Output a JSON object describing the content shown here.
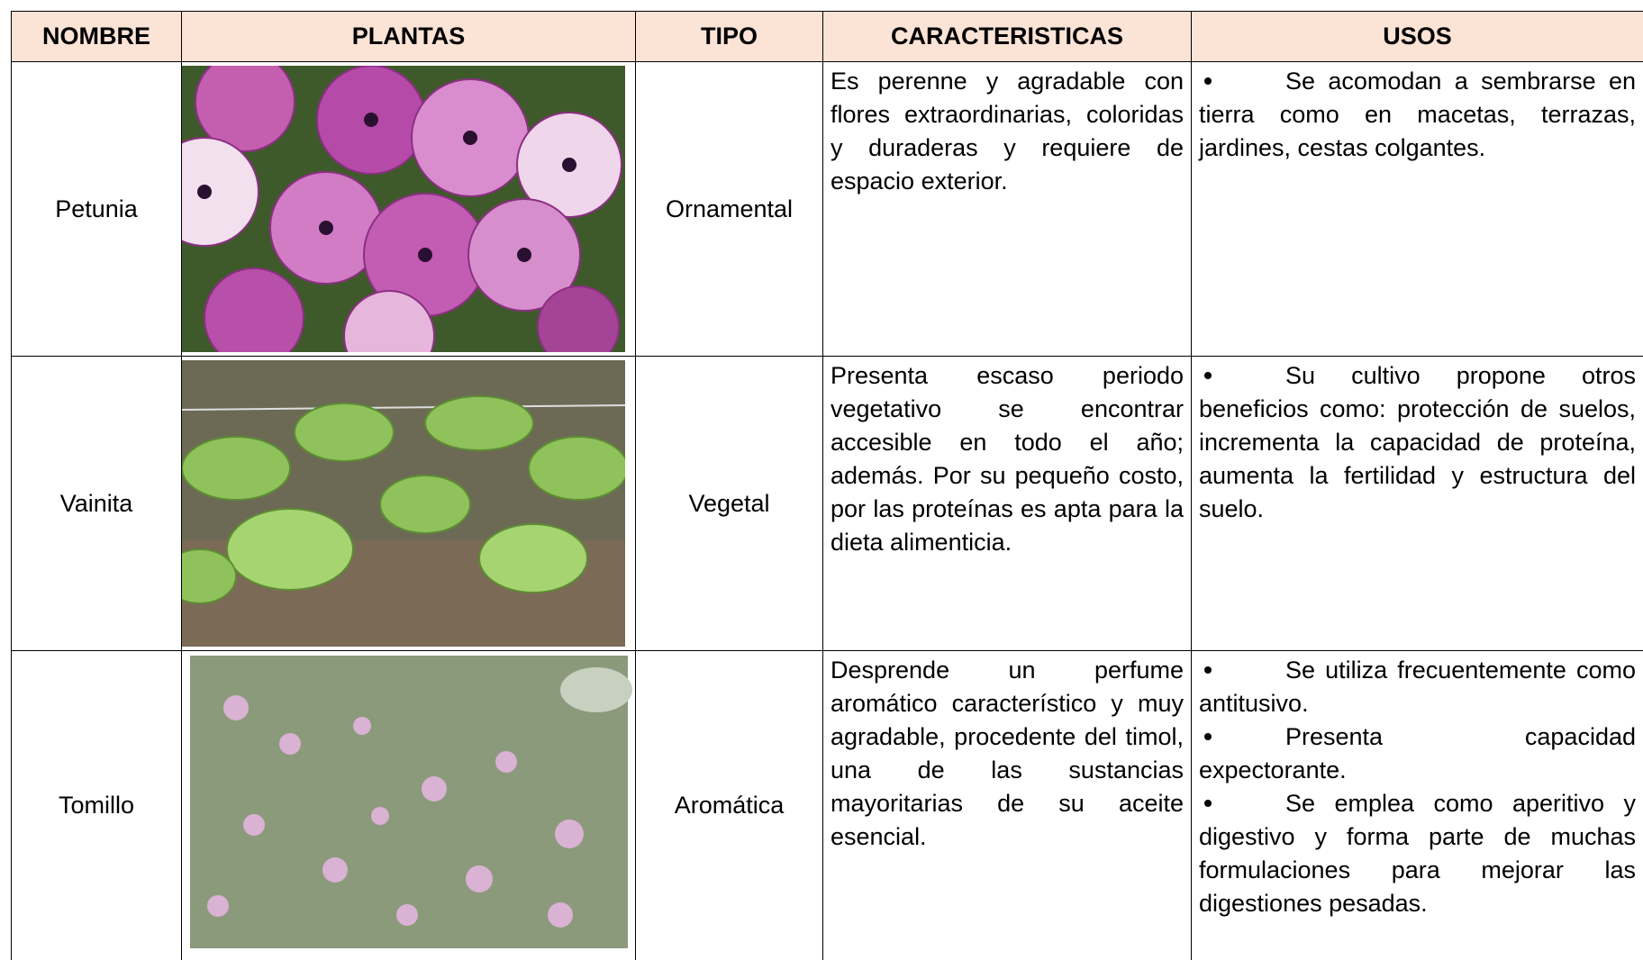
{
  "table": {
    "header": [
      "NOMBRE",
      "PLANTAS",
      "TIPO",
      "CARACTERISTICAS",
      "USOS"
    ],
    "rows": [
      {
        "nombre": "Petunia",
        "tipo": "Ornamental",
        "caracteristicas": "Es perenne y agradable con flores extraordinarias, coloridas y duraderas y requiere de espacio exterior.",
        "usos": [
          "Se acomodan a sembrarse en tierra como en macetas, terrazas, jardines, cestas colgantes."
        ]
      },
      {
        "nombre": "Vainita",
        "tipo": "Vegetal",
        "caracteristicas": "Presenta escaso periodo vegetativo se encontrar accesible en todo el año; además. Por su pequeño costo, por las proteínas es apta para la dieta alimenticia.",
        "usos": [
          "Su cultivo propone otros beneficios como: protección de suelos, incrementa la capacidad de proteína, aumenta la fertilidad y estructura del suelo."
        ]
      },
      {
        "nombre": "Tomillo",
        "tipo": "Aromática",
        "caracteristicas": "Desprende un perfume aromático característico y muy agradable, procedente del timol, una de las sustancias mayoritarias de su aceite esencial.",
        "usos": [
          "Se utiliza frecuentemente como antitusivo.",
          "Presenta capacidad expectorante.",
          "Se emplea como aperitivo y digestivo y forma parte de muchas formulaciones para mejorar las digestiones pesadas."
        ]
      }
    ]
  }
}
